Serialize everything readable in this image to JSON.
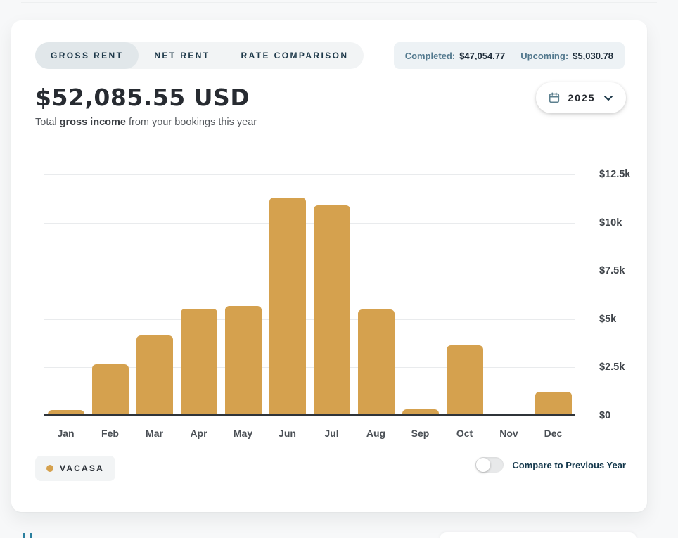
{
  "tabs": {
    "items": [
      {
        "label": "GROSS RENT",
        "active": true
      },
      {
        "label": "NET RENT",
        "active": false
      },
      {
        "label": "RATE COMPARISON",
        "active": false
      }
    ]
  },
  "summary": {
    "completed_label": "Completed:",
    "completed_value": "$47,054.77",
    "upcoming_label": "Upcoming:",
    "upcoming_value": "$5,030.78"
  },
  "headline": {
    "amount": "$52,085.55 USD",
    "subtitle_prefix": "Total ",
    "subtitle_bold": "gross income",
    "subtitle_suffix": " from your bookings this year"
  },
  "year_selector": {
    "year": "2025"
  },
  "chart_data": {
    "type": "bar",
    "title": "$52,085.55 USD",
    "categories": [
      "Jan",
      "Feb",
      "Mar",
      "Apr",
      "May",
      "Jun",
      "Jul",
      "Aug",
      "Sep",
      "Oct",
      "Nov",
      "Dec"
    ],
    "series": [
      {
        "name": "VACASA",
        "color": "#D5A14E",
        "values": [
          300,
          2650,
          4150,
          5550,
          5700,
          11300,
          10900,
          5500,
          320,
          3650,
          0,
          1250
        ]
      }
    ],
    "xlabel": "",
    "ylabel": "",
    "ylim": [
      0,
      12500
    ],
    "y_ticks": [
      {
        "value": 0,
        "label": "$0"
      },
      {
        "value": 2500,
        "label": "$2.5k"
      },
      {
        "value": 5000,
        "label": "$5k"
      },
      {
        "value": 7500,
        "label": "$7.5k"
      },
      {
        "value": 10000,
        "label": "$10k"
      },
      {
        "value": 12500,
        "label": "$12.5k"
      }
    ],
    "grid": true,
    "axis_side": "right",
    "legend_position": "bottom-left"
  },
  "legend": {
    "series_label": "VACASA",
    "dot_color": "#D5A14E"
  },
  "compare": {
    "label": "Compare to Previous Year",
    "state": "off"
  },
  "colors": {
    "bar": "#D5A14E",
    "accent_navy": "#1D3849",
    "teal_label": "#53798E",
    "page_bg": "#F7F8F9",
    "card_bg": "#FFFFFF"
  }
}
